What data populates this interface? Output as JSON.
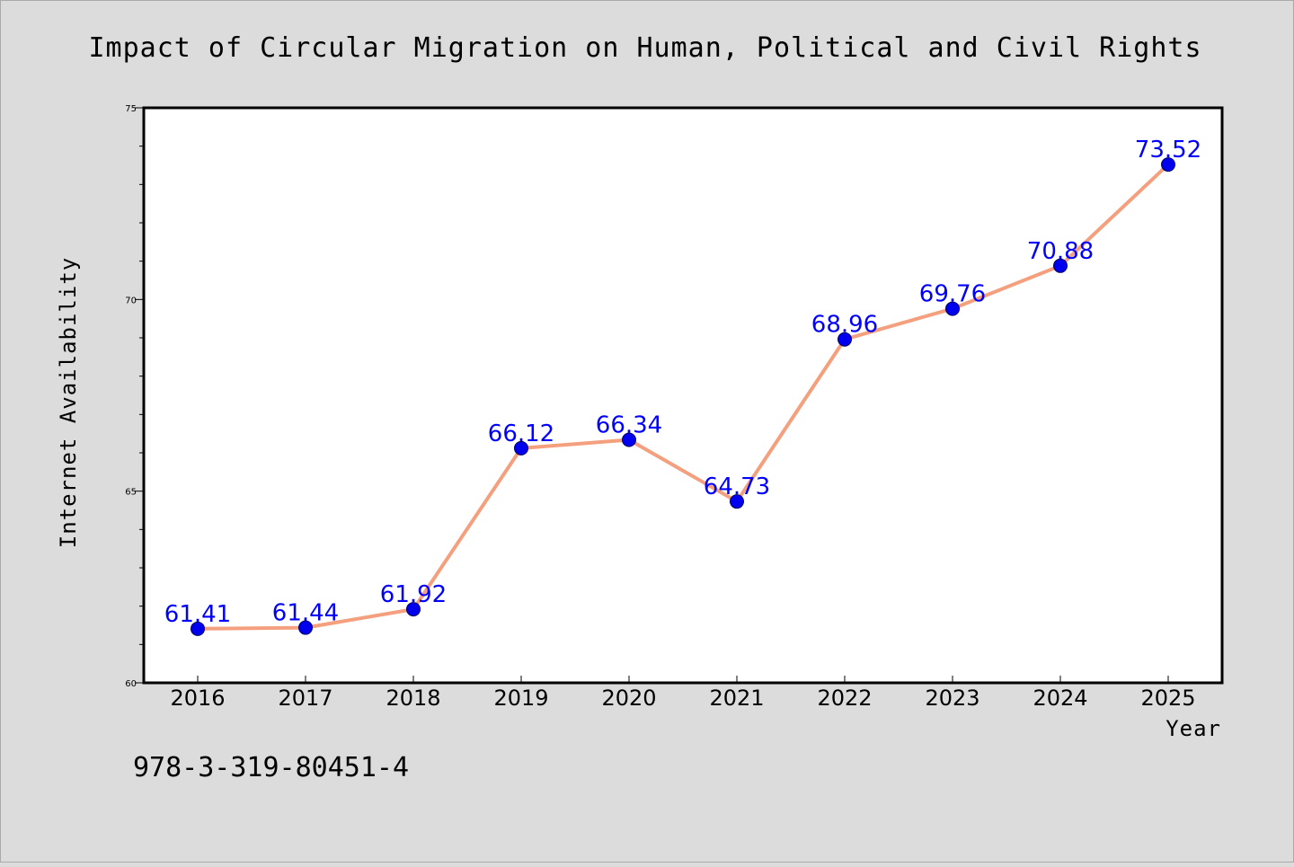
{
  "chart_data": {
    "type": "line",
    "title": "Impact of Circular Migration on Human, Political and Civil Rights",
    "xlabel": "Year",
    "ylabel": "Internet Availability",
    "x": [
      "2016",
      "2017",
      "2018",
      "2019",
      "2020",
      "2021",
      "2022",
      "2023",
      "2024",
      "2025"
    ],
    "series": [
      {
        "values": [
          61.41,
          61.44,
          61.92,
          66.12,
          66.34,
          64.73,
          68.96,
          69.76,
          70.88,
          73.52
        ],
        "data_labels": [
          "61.41",
          "61.44",
          "61.92",
          "66.12",
          "66.34",
          "64.73",
          "68.96",
          "69.76",
          "70.88",
          "73.52"
        ]
      }
    ],
    "ylim": [
      60,
      75
    ],
    "yticks": [
      "60",
      "65",
      "70",
      "75"
    ],
    "grid": false,
    "legend": "none"
  },
  "footnote": "978-3-319-80451-4",
  "colors": {
    "background": "#dcdcdc",
    "plot_area": "#ffffff",
    "line": "#f4a07e",
    "marker": "#0000ee",
    "data_label": "#0000ff"
  }
}
